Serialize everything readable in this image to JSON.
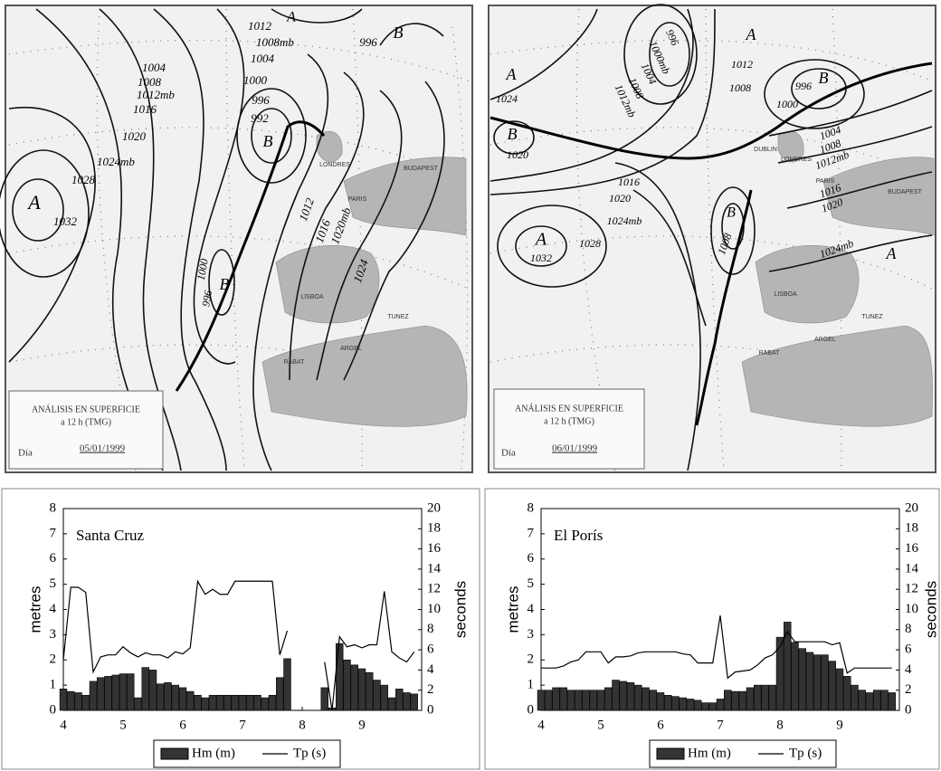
{
  "maps": [
    {
      "caption_title": "ANÁLISIS EN SUPERFICIE",
      "caption_time": "a 12 h (TMG)",
      "day_label": "Día",
      "date": "05/01/1999",
      "labels": [
        "1004",
        "1008",
        "1012mb",
        "1016",
        "1020",
        "1024mb",
        "1028",
        "1032",
        "A",
        "1012",
        "1008mb",
        "1004",
        "1000",
        "996",
        "992",
        "B",
        "996",
        "B",
        "A",
        "1012",
        "1016",
        "1020mb",
        "1024",
        "1000",
        "996",
        "B"
      ],
      "cities": [
        "PARIS",
        "LONDRES",
        "BUDAPEST",
        "LISBOA",
        "ARGEL",
        "TUNEZ",
        "RABAT"
      ]
    },
    {
      "caption_title": "ANÁLISIS EN SUPERFICIE",
      "caption_time": "a 12 h (TMG)",
      "day_label": "Día",
      "date": "06/01/1999",
      "labels": [
        "A",
        "1024",
        "B",
        "1020",
        "996",
        "1000mb",
        "1004",
        "1008",
        "1012mb",
        "1012",
        "1008",
        "A",
        "996",
        "B",
        "1000",
        "1004",
        "1008",
        "1012mb",
        "1016",
        "1020",
        "1016",
        "1020",
        "1024mb",
        "1028",
        "A",
        "1032",
        "1008",
        "B",
        "1024mb",
        "A"
      ],
      "cities": [
        "DUBLIN",
        "LONDRES",
        "PARIS",
        "BUDAPEST",
        "LISBOA",
        "ARGEL",
        "TUNEZ",
        "RABAT"
      ]
    }
  ],
  "chart_data": [
    {
      "type": "bar",
      "title": "Santa Cruz",
      "ylabel": "metres",
      "y2label": "seconds",
      "legend": "bottom",
      "x": [
        4,
        4.125,
        4.25,
        4.375,
        4.5,
        4.625,
        4.75,
        4.875,
        5,
        5.125,
        5.25,
        5.375,
        5.5,
        5.625,
        5.75,
        5.875,
        6,
        6.125,
        6.25,
        6.375,
        6.5,
        6.625,
        6.75,
        6.875,
        7,
        7.125,
        7.25,
        7.375,
        7.5,
        7.625,
        7.75,
        7.875,
        8,
        8.125,
        8.25,
        8.375,
        8.5,
        8.625,
        8.75,
        8.875,
        9,
        9.125,
        9.25,
        9.375,
        9.5,
        9.625,
        9.75,
        9.875
      ],
      "xlim": [
        4,
        10
      ],
      "xticks": [
        4,
        5,
        6,
        7,
        8,
        9
      ],
      "ylim": [
        0,
        8
      ],
      "yticks": [
        0,
        1,
        2,
        3,
        4,
        5,
        6,
        7,
        8
      ],
      "y2lim": [
        0,
        20
      ],
      "y2ticks": [
        0,
        2,
        4,
        6,
        8,
        10,
        12,
        14,
        16,
        18,
        20
      ],
      "series": [
        {
          "name": "Hm (m)",
          "color": "#333333",
          "values": [
            0.85,
            0.75,
            0.7,
            0.6,
            1.15,
            1.3,
            1.35,
            1.4,
            1.45,
            1.45,
            0.5,
            1.7,
            1.6,
            1.05,
            1.1,
            1.0,
            0.9,
            0.75,
            0.6,
            0.5,
            0.6,
            0.6,
            0.6,
            0.6,
            0.6,
            0.6,
            0.6,
            0.5,
            0.6,
            1.3,
            2.05,
            null,
            null,
            null,
            null,
            0.9,
            0.1,
            2.65,
            2.0,
            1.8,
            1.65,
            1.5,
            1.2,
            1.0,
            0.5,
            0.85,
            0.7,
            0.65
          ]
        },
        {
          "name": "Tp (s)",
          "type": "line",
          "axis": "y2",
          "color": "#000000",
          "values": [
            5,
            12.2,
            12.2,
            11.7,
            3.8,
            5.3,
            5.5,
            5.5,
            6.3,
            5.7,
            5.3,
            5.7,
            5.5,
            5.5,
            5.2,
            5.8,
            5.6,
            6.2,
            12.8,
            11.5,
            12,
            11.5,
            11.5,
            12.8,
            12.8,
            12.8,
            12.8,
            12.8,
            12.8,
            5.5,
            7.9,
            null,
            null,
            null,
            null,
            4.8,
            0,
            7.3,
            6.3,
            6.5,
            6.2,
            6.5,
            6.5,
            11.8,
            5.8,
            5.2,
            4.8,
            5.8
          ]
        }
      ]
    },
    {
      "type": "bar",
      "title": "El Porís",
      "ylabel": "metres",
      "y2label": "seconds",
      "legend": "bottom",
      "x": [
        4,
        4.125,
        4.25,
        4.375,
        4.5,
        4.625,
        4.75,
        4.875,
        5,
        5.125,
        5.25,
        5.375,
        5.5,
        5.625,
        5.75,
        5.875,
        6,
        6.125,
        6.25,
        6.375,
        6.5,
        6.625,
        6.75,
        6.875,
        7,
        7.125,
        7.25,
        7.375,
        7.5,
        7.625,
        7.75,
        7.875,
        8,
        8.125,
        8.25,
        8.375,
        8.5,
        8.625,
        8.75,
        8.875,
        9,
        9.125,
        9.25,
        9.375,
        9.5,
        9.625,
        9.75,
        9.875
      ],
      "xlim": [
        4,
        10
      ],
      "xticks": [
        4,
        5,
        6,
        7,
        8,
        9
      ],
      "ylim": [
        0,
        8
      ],
      "yticks": [
        0,
        1,
        2,
        3,
        4,
        5,
        6,
        7,
        8
      ],
      "y2lim": [
        0,
        20
      ],
      "y2ticks": [
        0,
        2,
        4,
        6,
        8,
        10,
        12,
        14,
        16,
        18,
        20
      ],
      "series": [
        {
          "name": "Hm (m)",
          "color": "#333333",
          "values": [
            0.8,
            0.8,
            0.9,
            0.9,
            0.8,
            0.8,
            0.8,
            0.8,
            0.8,
            0.9,
            1.2,
            1.15,
            1.1,
            1.0,
            0.9,
            0.8,
            0.7,
            0.6,
            0.55,
            0.5,
            0.45,
            0.4,
            0.3,
            0.3,
            0.45,
            0.8,
            0.75,
            0.75,
            0.9,
            1.0,
            1.0,
            1.0,
            2.9,
            3.5,
            2.7,
            2.45,
            2.3,
            2.2,
            2.2,
            1.95,
            1.65,
            1.35,
            1.0,
            0.8,
            0.7,
            0.8,
            0.8,
            0.7
          ]
        },
        {
          "name": "Tp (s)",
          "type": "line",
          "axis": "y2",
          "color": "#000000",
          "values": [
            4.2,
            4.2,
            4.2,
            4.4,
            4.8,
            5,
            5.8,
            5.8,
            5.8,
            4.7,
            5.3,
            5.3,
            5.4,
            5.7,
            5.8,
            5.8,
            5.8,
            5.8,
            5.8,
            5.6,
            5.5,
            4.7,
            4.7,
            4.7,
            9.4,
            3.2,
            3.8,
            3.9,
            4,
            4.5,
            5.2,
            5.5,
            6.3,
            7.8,
            6.8,
            6.8,
            6.8,
            6.8,
            6.8,
            6.5,
            6.7,
            3.7,
            4.2,
            4.2,
            4.2,
            4.2,
            4.2,
            4.2
          ]
        }
      ]
    }
  ]
}
